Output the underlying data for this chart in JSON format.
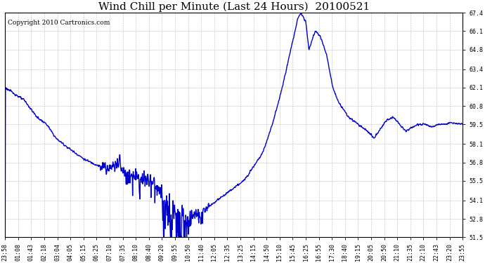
{
  "title": "Wind Chill per Minute (Last 24 Hours)  20100521",
  "copyright_text": "Copyright 2010 Cartronics.com",
  "line_color": "#0000cc",
  "background_color": "#ffffff",
  "plot_bg_color": "#ffffff",
  "grid_color": "#aaaaaa",
  "yticks": [
    51.5,
    52.8,
    54.1,
    55.5,
    56.8,
    58.1,
    59.5,
    60.8,
    62.1,
    63.4,
    64.8,
    66.1,
    67.4
  ],
  "ylim": [
    51.5,
    67.4
  ],
  "xtick_labels": [
    "23:58",
    "01:08",
    "01:43",
    "02:18",
    "03:04",
    "04:05",
    "05:15",
    "06:25",
    "07:10",
    "07:35",
    "08:10",
    "08:40",
    "09:20",
    "09:55",
    "10:50",
    "11:40",
    "12:05",
    "12:35",
    "13:25",
    "14:15",
    "14:50",
    "15:10",
    "15:45",
    "16:25",
    "16:55",
    "17:30",
    "18:40",
    "19:15",
    "20:05",
    "20:50",
    "21:10",
    "21:35",
    "22:10",
    "22:43",
    "23:20",
    "23:55"
  ],
  "title_fontsize": 11,
  "copyright_fontsize": 6.5,
  "tick_fontsize": 6.0,
  "line_width": 1.0
}
